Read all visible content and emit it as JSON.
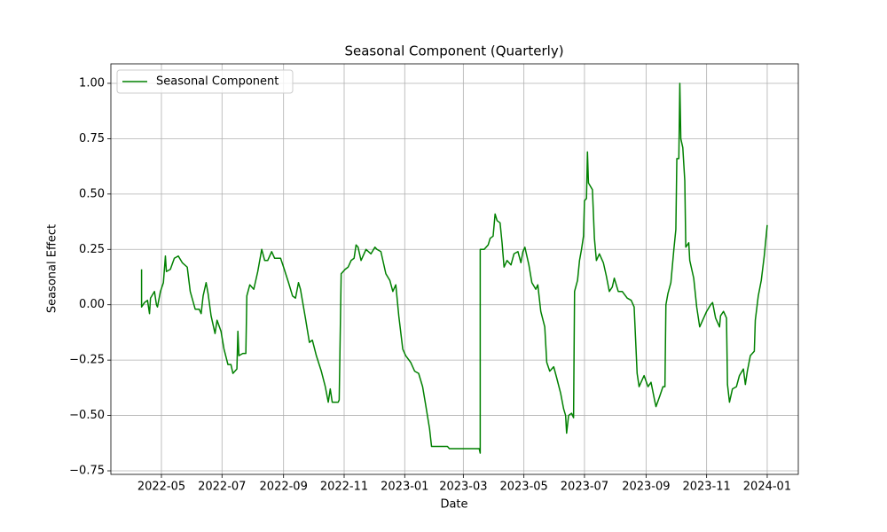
{
  "chart_data": {
    "type": "line",
    "title": "Seasonal Component (Quarterly)",
    "x_label": "Date",
    "y_label": "Seasonal Effect",
    "grid": true,
    "legend": "upper left",
    "xlim": [
      19062.1,
      19754.3
    ],
    "ylim": [
      -0.766,
      1.088
    ],
    "xticks": [
      {
        "value": 19113,
        "label": "2022-05"
      },
      {
        "value": 19174,
        "label": "2022-07"
      },
      {
        "value": 19236,
        "label": "2022-09"
      },
      {
        "value": 19297,
        "label": "2022-11"
      },
      {
        "value": 19358,
        "label": "2023-01"
      },
      {
        "value": 19417,
        "label": "2023-03"
      },
      {
        "value": 19478,
        "label": "2023-05"
      },
      {
        "value": 19539,
        "label": "2023-07"
      },
      {
        "value": 19601,
        "label": "2023-09"
      },
      {
        "value": 19662,
        "label": "2023-11"
      },
      {
        "value": 19723,
        "label": "2024-01"
      }
    ],
    "yticks": [
      {
        "value": -0.75,
        "label": "−0.75"
      },
      {
        "value": -0.5,
        "label": "−0.50"
      },
      {
        "value": -0.25,
        "label": "−0.25"
      },
      {
        "value": 0,
        "label": "0.00"
      },
      {
        "value": 0.25,
        "label": "0.25"
      },
      {
        "value": 0.5,
        "label": "0.50"
      },
      {
        "value": 0.75,
        "label": "0.75"
      },
      {
        "value": 1,
        "label": "1.00"
      }
    ],
    "x": [
      19093,
      19093,
      19096,
      19099,
      19101,
      19102,
      19106,
      19108,
      19109,
      19112,
      19115,
      19117,
      19118,
      19122,
      19126,
      19130,
      19134,
      19139,
      19142,
      19147,
      19151,
      19153,
      19155,
      19158,
      19160,
      19163,
      19167,
      19169,
      19173,
      19176,
      19180,
      19183,
      19185,
      19189,
      19190,
      19191,
      19195,
      19198,
      19199,
      19202,
      19206,
      19210,
      19214,
      19217,
      19220,
      19224,
      19227,
      19233,
      19236,
      19241,
      19245,
      19248,
      19251,
      19253,
      19258,
      19262,
      19265,
      19269,
      19274,
      19278,
      19281,
      19283,
      19285,
      19291,
      19292,
      19294,
      19298,
      19301,
      19304,
      19307,
      19309,
      19311,
      19314,
      19319,
      19324,
      19328,
      19330,
      19334,
      19339,
      19343,
      19346,
      19349,
      19352,
      19356,
      19359,
      19364,
      19368,
      19372,
      19376,
      19379,
      19383,
      19385,
      19389,
      19401,
      19403,
      19433,
      19434,
      19434,
      19438,
      19442,
      19444,
      19447,
      19449,
      19451,
      19454,
      19456,
      19458,
      19461,
      19465,
      19468,
      19472,
      19475,
      19477,
      19479,
      19483,
      19486,
      19490,
      19492,
      19495,
      19499,
      19501,
      19504,
      19508,
      19511,
      19515,
      19518,
      19520,
      19521,
      19523,
      19526,
      19528,
      19529,
      19532,
      19534,
      19536,
      19538,
      19539,
      19541,
      19542,
      19543,
      19547,
      19549,
      19551,
      19554,
      19558,
      19561,
      19564,
      19567,
      19569,
      19573,
      19577,
      19582,
      19586,
      19589,
      19592,
      19594,
      19597,
      19599,
      19603,
      19606,
      19610,
      19611,
      19615,
      19618,
      19620,
      19621,
      19623,
      19626,
      19629,
      19631,
      19632,
      19634,
      19635,
      19636,
      19638,
      19640,
      19641,
      19644,
      19645,
      19649,
      19652,
      19655,
      19659,
      19662,
      19666,
      19668,
      19671,
      19675,
      19676,
      19679,
      19682,
      19683,
      19685,
      19688,
      19692,
      19695,
      19699,
      19701,
      19703,
      19706,
      19710,
      19711,
      19714,
      19717,
      19720,
      19723
    ],
    "series": [
      {
        "name": "Seasonal Component",
        "color": "#008000",
        "values": [
          0.16,
          -0.01,
          0.01,
          0.02,
          -0.04,
          0.03,
          0.06,
          0.0,
          -0.01,
          0.06,
          0.1,
          0.22,
          0.15,
          0.16,
          0.21,
          0.22,
          0.19,
          0.17,
          0.06,
          -0.02,
          -0.02,
          -0.04,
          0.04,
          0.1,
          0.05,
          -0.05,
          -0.13,
          -0.07,
          -0.12,
          -0.2,
          -0.27,
          -0.27,
          -0.31,
          -0.29,
          -0.12,
          -0.23,
          -0.22,
          -0.22,
          0.04,
          0.09,
          0.07,
          0.15,
          0.25,
          0.2,
          0.2,
          0.24,
          0.21,
          0.21,
          0.17,
          0.1,
          0.04,
          0.03,
          0.1,
          0.07,
          -0.06,
          -0.17,
          -0.16,
          -0.23,
          -0.3,
          -0.37,
          -0.44,
          -0.38,
          -0.44,
          -0.44,
          -0.43,
          0.14,
          0.16,
          0.17,
          0.2,
          0.21,
          0.27,
          0.26,
          0.2,
          0.25,
          0.23,
          0.26,
          0.25,
          0.24,
          0.14,
          0.11,
          0.06,
          0.09,
          -0.05,
          -0.2,
          -0.23,
          -0.26,
          -0.3,
          -0.31,
          -0.37,
          -0.45,
          -0.56,
          -0.64,
          -0.64,
          -0.64,
          -0.65,
          -0.65,
          -0.67,
          0.25,
          0.25,
          0.27,
          0.3,
          0.31,
          0.41,
          0.38,
          0.37,
          0.28,
          0.17,
          0.2,
          0.18,
          0.23,
          0.24,
          0.19,
          0.24,
          0.26,
          0.18,
          0.1,
          0.07,
          0.09,
          -0.03,
          -0.1,
          -0.26,
          -0.3,
          -0.28,
          -0.33,
          -0.4,
          -0.47,
          -0.5,
          -0.58,
          -0.5,
          -0.49,
          -0.51,
          0.06,
          0.11,
          0.2,
          0.25,
          0.31,
          0.47,
          0.48,
          0.69,
          0.55,
          0.52,
          0.3,
          0.2,
          0.23,
          0.19,
          0.13,
          0.06,
          0.08,
          0.12,
          0.06,
          0.06,
          0.03,
          0.02,
          -0.01,
          -0.31,
          -0.37,
          -0.34,
          -0.32,
          -0.37,
          -0.35,
          -0.44,
          -0.46,
          -0.41,
          -0.37,
          -0.37,
          0.0,
          0.05,
          0.1,
          0.25,
          0.34,
          0.66,
          0.66,
          1.0,
          0.75,
          0.71,
          0.56,
          0.26,
          0.28,
          0.2,
          0.12,
          -0.01,
          -0.1,
          -0.06,
          -0.03,
          0.0,
          0.01,
          -0.06,
          -0.1,
          -0.05,
          -0.03,
          -0.06,
          -0.36,
          -0.44,
          -0.38,
          -0.37,
          -0.32,
          -0.29,
          -0.36,
          -0.3,
          -0.23,
          -0.21,
          -0.07,
          0.04,
          0.11,
          0.22,
          0.36
        ]
      }
    ]
  }
}
